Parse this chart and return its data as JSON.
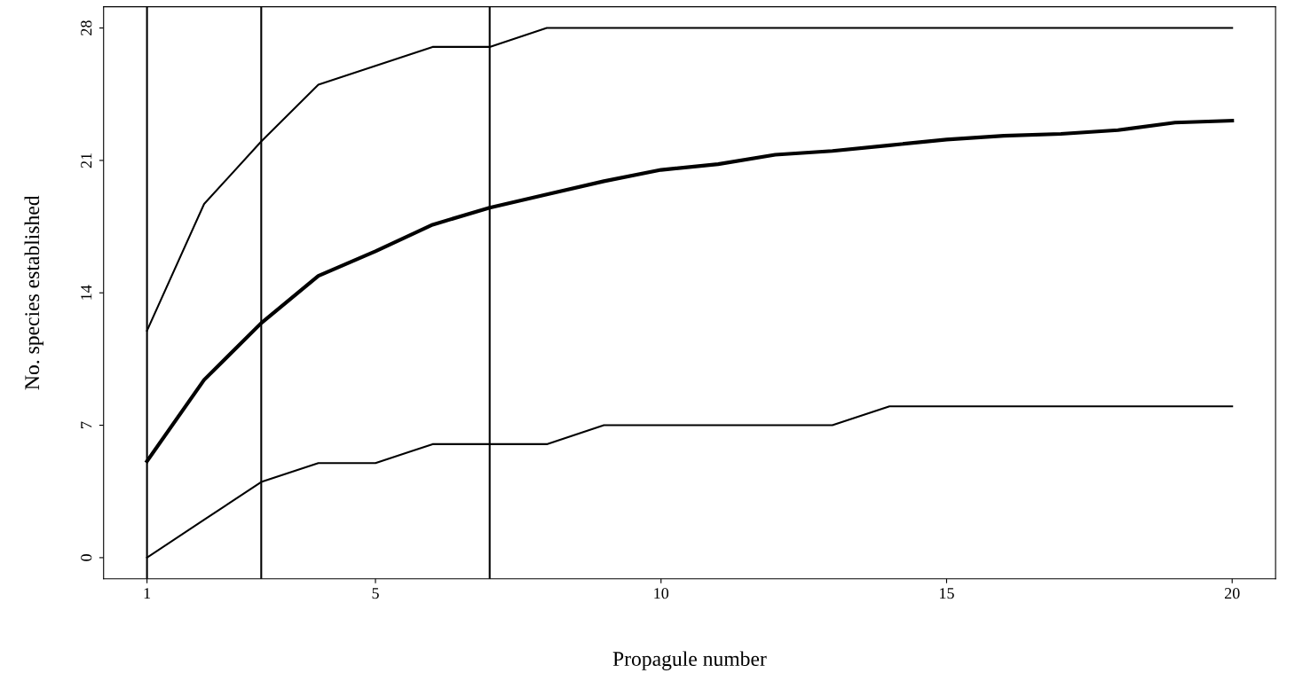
{
  "chart_data": {
    "type": "line",
    "xlabel": "Propagule number",
    "ylabel": "No. species established",
    "x": [
      1,
      2,
      3,
      4,
      5,
      6,
      7,
      8,
      9,
      10,
      11,
      12,
      13,
      14,
      15,
      16,
      17,
      18,
      19,
      20
    ],
    "series": [
      {
        "color": "#000000",
        "values": [
          12,
          18.7,
          22,
          25,
          26,
          27,
          27,
          28,
          28,
          28,
          28,
          28,
          28,
          28,
          28,
          28,
          28,
          28,
          28,
          28
        ]
      },
      {
        "color": "#000000",
        "values": [
          5.1,
          9.4,
          12.4,
          14.9,
          16.2,
          17.6,
          18.5,
          19.2,
          19.9,
          20.5,
          20.8,
          21.3,
          21.5,
          21.8,
          22.1,
          22.3,
          22.4,
          22.6,
          23,
          23.1
        ]
      },
      {
        "color": "#000000",
        "values": [
          0,
          2,
          4,
          5,
          5,
          6,
          6,
          6,
          7,
          7,
          7,
          7,
          7,
          8,
          8,
          8,
          8,
          8,
          8,
          8
        ]
      }
    ],
    "xlim": [
      0.24,
      20.76
    ],
    "xticks": [
      1,
      5,
      10,
      15,
      20
    ],
    "ylim": [
      -1.12,
      29.12
    ],
    "yticks": [
      0,
      7,
      14,
      21,
      28
    ],
    "ref_lines": [
      {
        "axis": "x",
        "value": 1,
        "color": "#000000"
      },
      {
        "axis": "x",
        "value": 3,
        "color": "#000000"
      },
      {
        "axis": "x",
        "value": 7,
        "color": "#000000"
      }
    ],
    "grid": false,
    "legend": false,
    "marker": "none",
    "line_style": "solid"
  }
}
